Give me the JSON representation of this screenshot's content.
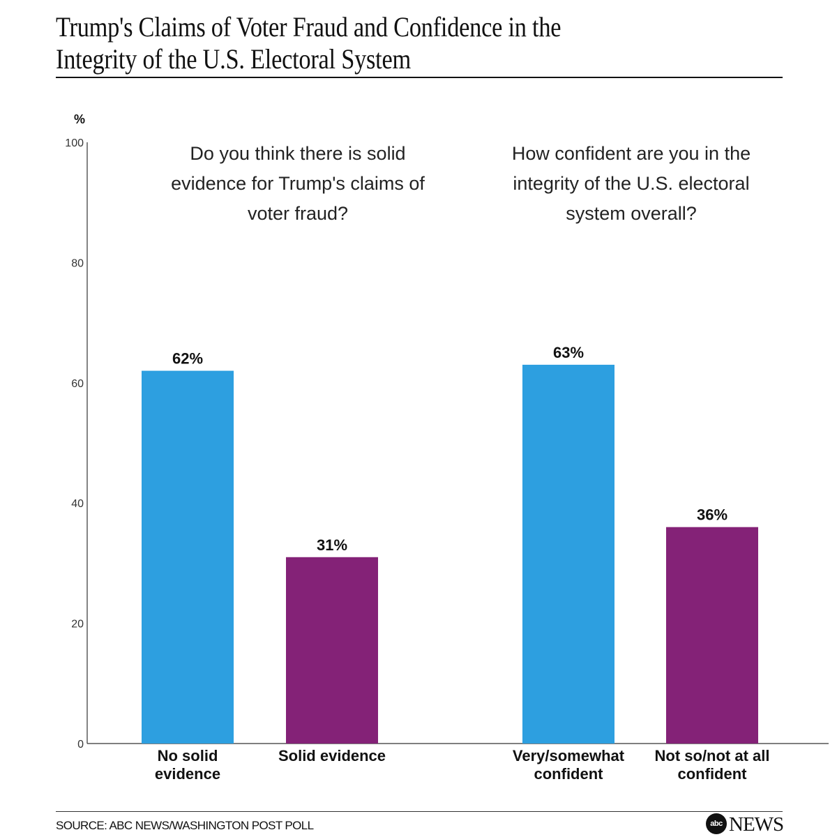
{
  "header": {
    "title_line1": "Trump's Claims of Voter Fraud and Confidence in the",
    "title_line2": "Integrity of the U.S. Electoral System"
  },
  "footer": {
    "source": "SOURCE: ABC NEWS/WASHINGTON POST POLL",
    "brand_mark": "abc",
    "brand_word": "NEWS"
  },
  "chart_data": {
    "type": "bar",
    "title": "Trump's Claims of Voter Fraud and Confidence in the Integrity of the U.S. Electoral System",
    "ylabel": "%",
    "ylim": [
      0,
      100
    ],
    "yticks": [
      0,
      20,
      40,
      60,
      80,
      100
    ],
    "grid": false,
    "colors": {
      "primary": "#2d9fe0",
      "secondary": "#842277"
    },
    "groups": [
      {
        "question": [
          "Do you think there is solid",
          "evidence for Trump's claims of",
          "voter fraud?"
        ],
        "bars": [
          {
            "category": [
              "No solid",
              "evidence"
            ],
            "value": 62,
            "label": "62%",
            "color": "#2d9fe0"
          },
          {
            "category": [
              "Solid evidence"
            ],
            "value": 31,
            "label": "31%",
            "color": "#842277"
          }
        ]
      },
      {
        "question": [
          "How confident are you in the",
          "integrity of the U.S. electoral",
          "system overall?"
        ],
        "bars": [
          {
            "category": [
              "Very/somewhat",
              "confident"
            ],
            "value": 63,
            "label": "63%",
            "color": "#2d9fe0"
          },
          {
            "category": [
              "Not so/not at all",
              "confident"
            ],
            "value": 36,
            "label": "36%",
            "color": "#842277"
          }
        ]
      }
    ]
  }
}
